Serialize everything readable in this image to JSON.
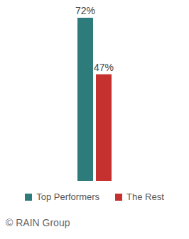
{
  "chart_data": {
    "type": "bar",
    "categories": [
      null
    ],
    "series": [
      {
        "name": "Top Performers",
        "color": "#2e7b7b",
        "values": [
          72
        ],
        "value_labels": [
          "72%"
        ]
      },
      {
        "name": "The Rest",
        "color": "#c4312f",
        "values": [
          47
        ],
        "value_labels": [
          "47%"
        ]
      }
    ],
    "ylim": [
      0,
      72
    ],
    "data_labels": true,
    "tick_labels": false,
    "legend": "bottom",
    "source": "© RAIN Group"
  }
}
